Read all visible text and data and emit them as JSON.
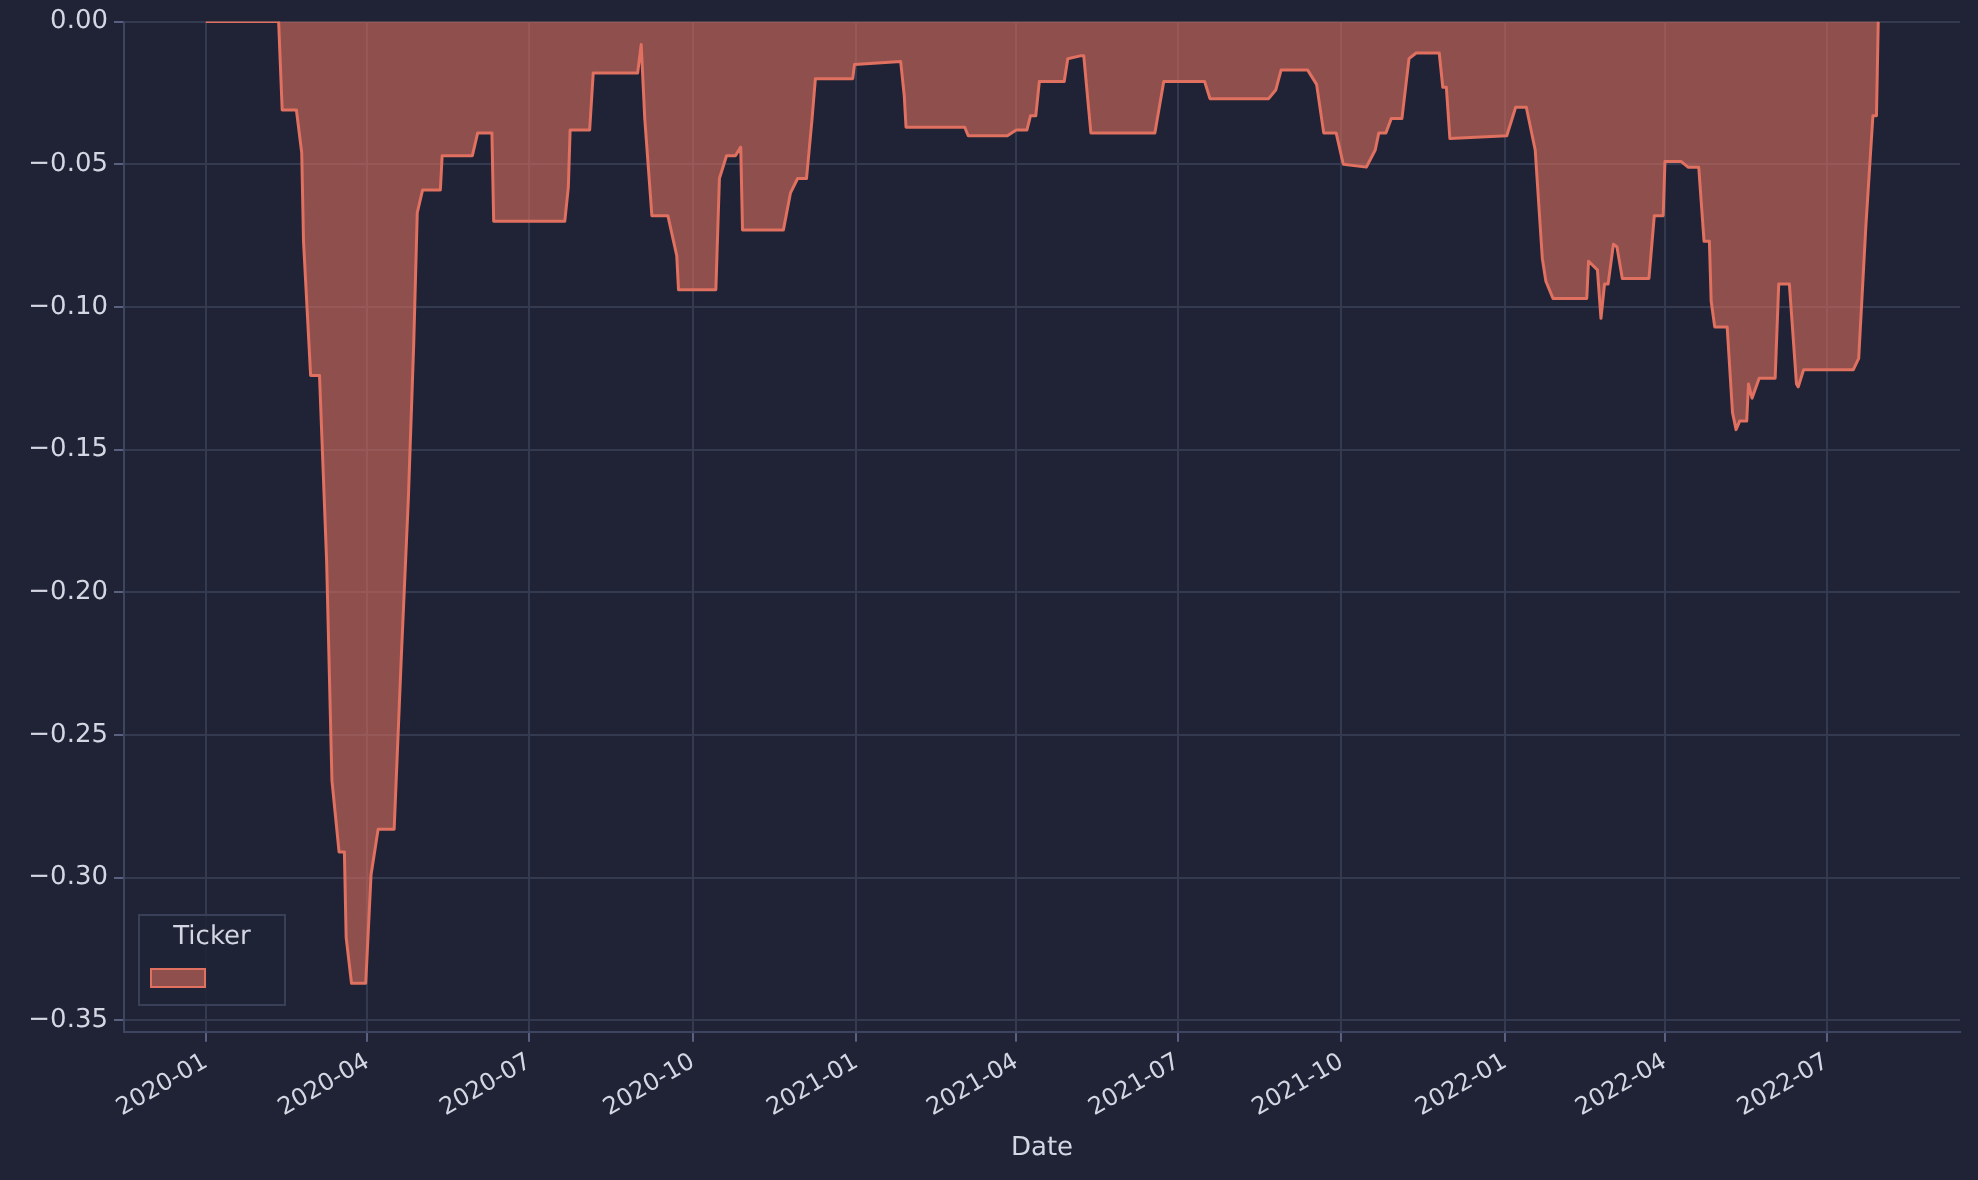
{
  "chart_data": {
    "type": "area",
    "xlabel": "Date",
    "legend_title": "Ticker",
    "grid": true,
    "xlim": [
      "2019-11-16",
      "2022-09-14"
    ],
    "xticks": [
      "2020-01",
      "2020-04",
      "2020-07",
      "2020-10",
      "2021-01",
      "2021-04",
      "2021-07",
      "2021-10",
      "2022-01",
      "2022-04",
      "2022-07"
    ],
    "ylim": [
      -0.354,
      0
    ],
    "yticks": [
      {
        "value": -0.35,
        "label": "−0.35"
      },
      {
        "value": -0.3,
        "label": "−0.30"
      },
      {
        "value": -0.25,
        "label": "−0.25"
      },
      {
        "value": -0.2,
        "label": "−0.20"
      },
      {
        "value": -0.15,
        "label": "−0.15"
      },
      {
        "value": -0.1,
        "label": "−0.10"
      },
      {
        "value": -0.05,
        "label": "−0.05"
      },
      {
        "value": 0,
        "label": "0.00"
      }
    ],
    "x": [
      "2020-01-01",
      "2020-02-11",
      "2020-02-13",
      "2020-02-21",
      "2020-02-24",
      "2020-02-25",
      "2020-02-29",
      "2020-03-05",
      "2020-03-09",
      "2020-03-12",
      "2020-03-16",
      "2020-03-19",
      "2020-03-20",
      "2020-03-23",
      "2020-03-31",
      "2020-04-03",
      "2020-04-07",
      "2020-04-16",
      "2020-04-20",
      "2020-04-24",
      "2020-04-27",
      "2020-04-29",
      "2020-05-02",
      "2020-05-12",
      "2020-05-13",
      "2020-05-30",
      "2020-06-02",
      "2020-06-10",
      "2020-06-11",
      "2020-07-21",
      "2020-07-23",
      "2020-07-24",
      "2020-08-04",
      "2020-08-06",
      "2020-08-31",
      "2020-09-02",
      "2020-09-04",
      "2020-09-08",
      "2020-09-17",
      "2020-09-22",
      "2020-09-23",
      "2020-10-14",
      "2020-10-16",
      "2020-10-20",
      "2020-10-25",
      "2020-10-28",
      "2020-10-29",
      "2020-11-21",
      "2020-11-25",
      "2020-11-29",
      "2020-12-04",
      "2020-12-07",
      "2020-12-09",
      "2020-12-30",
      "2020-12-31",
      "2021-01-26",
      "2021-01-28",
      "2021-01-29",
      "2021-03-03",
      "2021-03-05",
      "2021-03-27",
      "2021-04-01",
      "2021-04-07",
      "2021-04-09",
      "2021-04-12",
      "2021-04-14",
      "2021-04-28",
      "2021-04-30",
      "2021-05-07",
      "2021-05-09",
      "2021-05-13",
      "2021-06-18",
      "2021-06-23",
      "2021-07-16",
      "2021-07-19",
      "2021-08-21",
      "2021-08-25",
      "2021-08-28",
      "2021-09-12",
      "2021-09-17",
      "2021-09-21",
      "2021-09-28",
      "2021-10-02",
      "2021-10-15",
      "2021-10-20",
      "2021-10-22",
      "2021-10-26",
      "2021-10-29",
      "2021-11-04",
      "2021-11-08",
      "2021-11-12",
      "2021-11-25",
      "2021-11-27",
      "2021-11-29",
      "2021-12-01",
      "2022-01-02",
      "2022-01-07",
      "2022-01-13",
      "2022-01-18",
      "2022-01-22",
      "2022-01-24",
      "2022-01-28",
      "2022-02-16",
      "2022-02-17",
      "2022-02-22",
      "2022-02-24",
      "2022-02-26",
      "2022-02-28",
      "2022-03-03",
      "2022-03-05",
      "2022-03-08",
      "2022-03-23",
      "2022-03-26",
      "2022-03-31",
      "2022-04-01",
      "2022-04-10",
      "2022-04-14",
      "2022-04-20",
      "2022-04-23",
      "2022-04-26",
      "2022-04-27",
      "2022-04-29",
      "2022-05-06",
      "2022-05-09",
      "2022-05-11",
      "2022-05-13",
      "2022-05-17",
      "2022-05-18",
      "2022-05-20",
      "2022-05-24",
      "2022-06-02",
      "2022-06-04",
      "2022-06-10",
      "2022-06-14",
      "2022-06-15",
      "2022-06-18",
      "2022-07-16",
      "2022-07-19",
      "2022-07-23",
      "2022-07-27",
      "2022-07-29",
      "2022-07-30"
    ],
    "series": [
      {
        "color": "#e0705f",
        "values": [
          0,
          0,
          -0.031,
          -0.031,
          -0.046,
          -0.077,
          -0.124,
          -0.124,
          -0.189,
          -0.266,
          -0.291,
          -0.291,
          -0.321,
          -0.337,
          -0.337,
          -0.299,
          -0.283,
          -0.283,
          -0.223,
          -0.167,
          -0.113,
          -0.067,
          -0.059,
          -0.059,
          -0.047,
          -0.047,
          -0.039,
          -0.039,
          -0.07,
          -0.07,
          -0.058,
          -0.038,
          -0.038,
          -0.018,
          -0.018,
          -0.008,
          -0.034,
          -0.068,
          -0.068,
          -0.082,
          -0.094,
          -0.094,
          -0.055,
          -0.047,
          -0.047,
          -0.044,
          -0.073,
          -0.073,
          -0.06,
          -0.055,
          -0.055,
          -0.035,
          -0.02,
          -0.02,
          -0.015,
          -0.014,
          -0.026,
          -0.037,
          -0.037,
          -0.04,
          -0.04,
          -0.038,
          -0.038,
          -0.033,
          -0.033,
          -0.021,
          -0.021,
          -0.013,
          -0.012,
          -0.012,
          -0.039,
          -0.039,
          -0.021,
          -0.021,
          -0.027,
          -0.027,
          -0.024,
          -0.017,
          -0.017,
          -0.022,
          -0.039,
          -0.039,
          -0.05,
          -0.051,
          -0.045,
          -0.039,
          -0.039,
          -0.034,
          -0.034,
          -0.013,
          -0.011,
          -0.011,
          -0.023,
          -0.023,
          -0.041,
          -0.04,
          -0.03,
          -0.03,
          -0.045,
          -0.083,
          -0.091,
          -0.097,
          -0.097,
          -0.084,
          -0.087,
          -0.104,
          -0.092,
          -0.092,
          -0.078,
          -0.079,
          -0.09,
          -0.09,
          -0.068,
          -0.068,
          -0.049,
          -0.049,
          -0.051,
          -0.051,
          -0.077,
          -0.077,
          -0.098,
          -0.107,
          -0.107,
          -0.137,
          -0.143,
          -0.14,
          -0.14,
          -0.127,
          -0.132,
          -0.125,
          -0.125,
          -0.092,
          -0.092,
          -0.127,
          -0.128,
          -0.122,
          -0.122,
          -0.118,
          -0.072,
          -0.033,
          -0.033,
          0
        ]
      }
    ]
  }
}
